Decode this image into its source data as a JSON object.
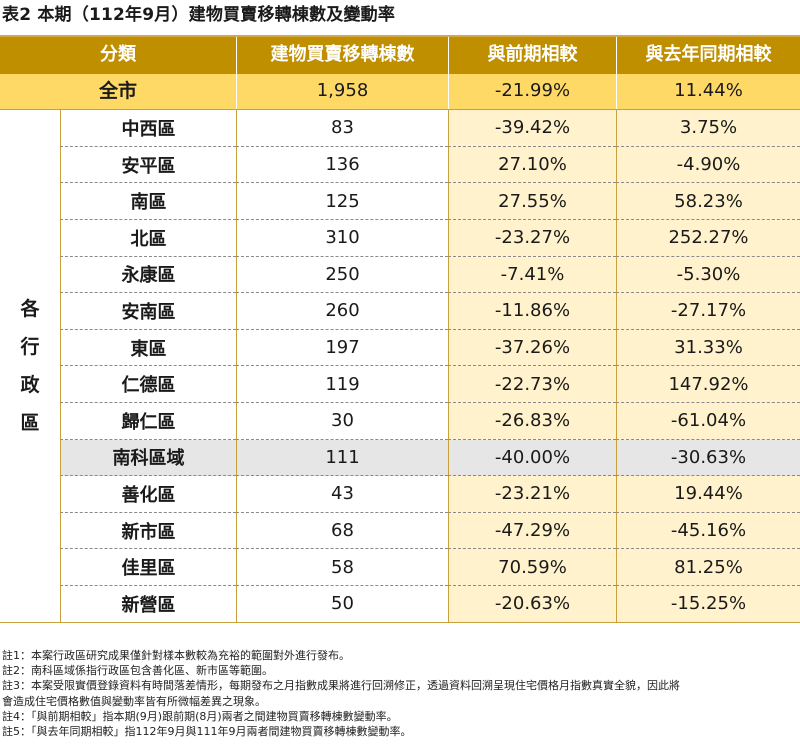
{
  "title": "表2 本期（112年9月）建物買賣移轉棟數及變動率",
  "headers": [
    "分類",
    "建物買賣移轉棟數",
    "與前期相較",
    "與去年同期相較"
  ],
  "total": {
    "name": "全市",
    "count": "1,958",
    "prev": "-21.99%",
    "yoy": "11.44%"
  },
  "group_label": [
    "各",
    "行",
    "政",
    "區"
  ],
  "rows": [
    {
      "name": "中西區",
      "count": "83",
      "prev": "-39.42%",
      "yoy": "3.75%"
    },
    {
      "name": "安平區",
      "count": "136",
      "prev": "27.10%",
      "yoy": "-4.90%"
    },
    {
      "name": "南區",
      "count": "125",
      "prev": "27.55%",
      "yoy": "58.23%"
    },
    {
      "name": "北區",
      "count": "310",
      "prev": "-23.27%",
      "yoy": "252.27%"
    },
    {
      "name": "永康區",
      "count": "250",
      "prev": "-7.41%",
      "yoy": "-5.30%"
    },
    {
      "name": "安南區",
      "count": "260",
      "prev": "-11.86%",
      "yoy": "-27.17%"
    },
    {
      "name": "東區",
      "count": "197",
      "prev": "-37.26%",
      "yoy": "31.33%"
    },
    {
      "name": "仁德區",
      "count": "119",
      "prev": "-22.73%",
      "yoy": "147.92%"
    },
    {
      "name": "歸仁區",
      "count": "30",
      "prev": "-26.83%",
      "yoy": "-61.04%"
    },
    {
      "name": "南科區域",
      "count": "111",
      "prev": "-40.00%",
      "yoy": "-30.63%",
      "highlight": true
    },
    {
      "name": "善化區",
      "count": "43",
      "prev": "-23.21%",
      "yoy": "19.44%"
    },
    {
      "name": "新市區",
      "count": "68",
      "prev": "-47.29%",
      "yoy": "-45.16%"
    },
    {
      "name": "佳里區",
      "count": "58",
      "prev": "70.59%",
      "yoy": "81.25%"
    },
    {
      "name": "新營區",
      "count": "50",
      "prev": "-20.63%",
      "yoy": "-15.25%"
    }
  ],
  "notes": [
    "註1：本案行政區研究成果僅針對樣本數較為充裕的範圍對外進行發布。",
    "註2：南科區域係指行政區包含善化區、新市區等範圍。",
    "註3：本案受限實價登錄資料有時間落差情形，每期發布之月指數成果將進行回溯修正，透過資料回溯呈現住宅價格月指數真實全貌，因此將",
    "會造成住宅價格數值與變動率皆有所微幅差異之現象。",
    "註4：「與前期相較」指本期(9月)跟前期(8月)兩者之間建物買賣移轉棟數變動率。",
    "註5：「與去年同期相較」指112年9月與111年9月兩者間建物買賣移轉棟數變動率。"
  ],
  "colors": {
    "header_bg": "#bf8f00",
    "total_bg": "#ffd966",
    "change_bg": "#fff2cc",
    "highlight_bg": "#e7e6e6"
  }
}
